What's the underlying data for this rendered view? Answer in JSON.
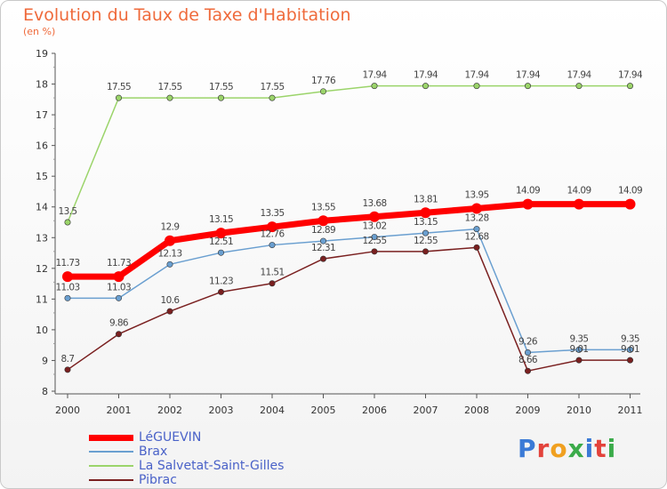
{
  "chart_data": {
    "type": "line",
    "title": "Evolution du Taux de Taxe d'Habitation",
    "subtitle": "(en %)",
    "x": [
      "2000",
      "2001",
      "2002",
      "2003",
      "2004",
      "2005",
      "2006",
      "2007",
      "2008",
      "2009",
      "2010",
      "2011"
    ],
    "ylim": [
      8,
      19
    ],
    "yticks": [
      8,
      9,
      10,
      11,
      12,
      13,
      14,
      15,
      16,
      17,
      18,
      19
    ],
    "grid": false,
    "legend": "bottom-left",
    "series": [
      {
        "name": "LéGUEVIN",
        "color": "#ff0000",
        "values": [
          11.73,
          11.73,
          12.9,
          13.15,
          13.35,
          13.55,
          13.68,
          13.81,
          13.95,
          14.09,
          14.09,
          14.09
        ],
        "labels": [
          "11.73",
          "11.73",
          "12.9",
          "13.15",
          "13.35",
          "13.55",
          "13.68",
          "13.81",
          "13.95",
          "14.09",
          "14.09",
          "14.09"
        ]
      },
      {
        "name": "Brax",
        "color": "#6a9fd0",
        "values": [
          11.03,
          11.03,
          12.13,
          12.51,
          12.76,
          12.89,
          13.02,
          13.15,
          13.28,
          9.26,
          9.35,
          9.35
        ],
        "labels": [
          "11.03",
          "11.03",
          "12.13",
          "12.51",
          "12.76",
          "12.89",
          "13.02",
          "13.15",
          "13.28",
          "9.26",
          "9.35",
          "9.35"
        ]
      },
      {
        "name": "La Salvetat-Saint-Gilles",
        "color": "#9bd46a",
        "values": [
          13.5,
          17.55,
          17.55,
          17.55,
          17.55,
          17.76,
          17.94,
          17.94,
          17.94,
          17.94,
          17.94,
          17.94
        ],
        "labels": [
          "13.5",
          "17.55",
          "17.55",
          "17.55",
          "17.55",
          "17.76",
          "17.94",
          "17.94",
          "17.94",
          "17.94",
          "17.94",
          "17.94"
        ]
      },
      {
        "name": "Pibrac",
        "color": "#7a2020",
        "values": [
          8.7,
          9.86,
          10.6,
          11.23,
          11.51,
          12.31,
          12.55,
          12.55,
          12.68,
          8.66,
          9.01,
          9.01
        ],
        "labels": [
          "8.7",
          "9.86",
          "10.6",
          "11.23",
          "11.51",
          "12.31",
          "12.55",
          "12.55",
          "12.68",
          "8.66",
          "9.01",
          "9.01"
        ]
      }
    ]
  },
  "logo": {
    "text": "Proxiti"
  }
}
